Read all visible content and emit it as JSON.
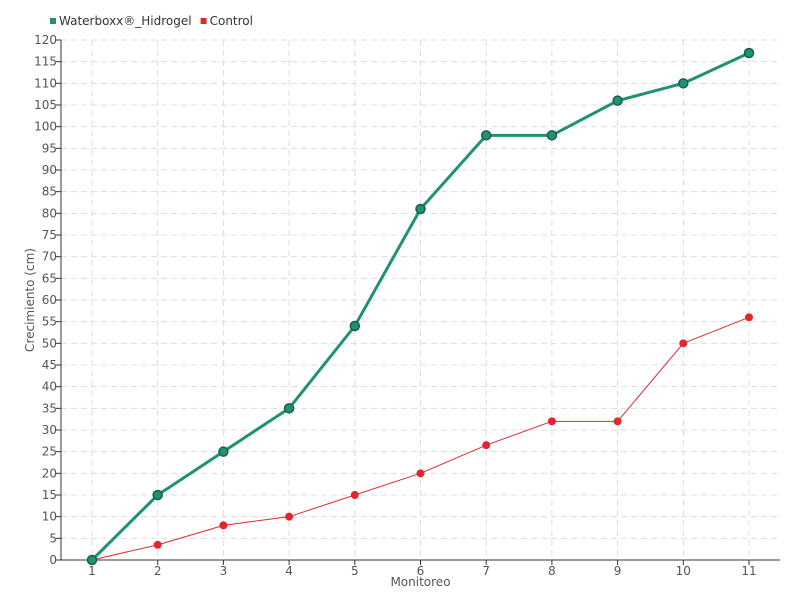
{
  "chart_data": {
    "type": "line",
    "title": "",
    "xlabel": "Monitoreo",
    "ylabel": "Crecimiento (cm)",
    "categories": [
      "1",
      "2",
      "3",
      "4",
      "5",
      "6",
      "7",
      "8",
      "9",
      "10",
      "11"
    ],
    "ylim": [
      0,
      120
    ],
    "ytick_step": 5,
    "grid": true,
    "legend_position": "top-left",
    "series": [
      {
        "name": "Waterboxx®_Hidrogel",
        "color": "#1f9274",
        "values": [
          0,
          15,
          25,
          35,
          54,
          81,
          98,
          98,
          106,
          110,
          117
        ]
      },
      {
        "name": "Control",
        "color": "#e3262e",
        "values": [
          0,
          3.5,
          8,
          10,
          15,
          20,
          26.5,
          32,
          32,
          50,
          56
        ]
      }
    ]
  }
}
